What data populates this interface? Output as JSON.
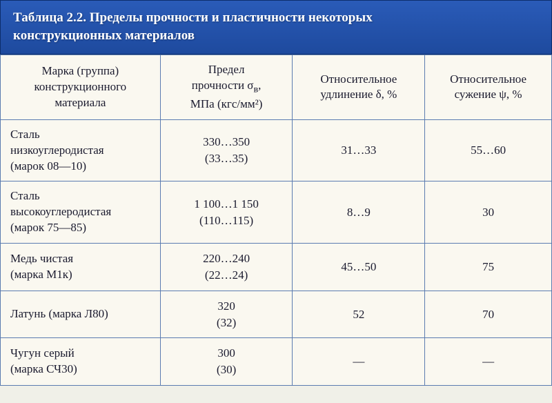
{
  "title_line1": "Таблица 2.2. Пределы прочности и пластичности некоторых",
  "title_line2": "конструкционных материалов",
  "headers": {
    "material": "Марка (группа) конструкционного материала",
    "strength_l1": "Предел",
    "strength_l2": "прочности σ",
    "strength_sub": "в",
    "strength_l2b": ",",
    "strength_l3": "МПа (кгс/мм²)",
    "elongation_l1": "Относительное",
    "elongation_l2": "удлинение δ, %",
    "narrowing_l1": "Относительное",
    "narrowing_l2": "сужение ψ, %"
  },
  "rows": [
    {
      "material_l1": "Сталь",
      "material_l2": "низкоуглеродистая",
      "material_l3": "(марок 08—10)",
      "strength_l1": "330…350",
      "strength_l2": "(33…35)",
      "elongation": "31…33",
      "narrowing": "55…60"
    },
    {
      "material_l1": "Сталь",
      "material_l2": "высокоуглеродистая",
      "material_l3": "(марок 75—85)",
      "strength_l1": "1 100…1 150",
      "strength_l2": "(110…115)",
      "elongation": "8…9",
      "narrowing": "30"
    },
    {
      "material_l1": "Медь чистая",
      "material_l2": "(марка М1к)",
      "material_l3": "",
      "strength_l1": "220…240",
      "strength_l2": "(22…24)",
      "elongation": "45…50",
      "narrowing": "75"
    },
    {
      "material_l1": "Латунь (марка Л80)",
      "material_l2": "",
      "material_l3": "",
      "strength_l1": "320",
      "strength_l2": "(32)",
      "elongation": "52",
      "narrowing": "70"
    },
    {
      "material_l1": "Чугун серый",
      "material_l2": "(марка СЧ30)",
      "material_l3": "",
      "strength_l1": "300",
      "strength_l2": "(30)",
      "elongation": "—",
      "narrowing": "—"
    }
  ],
  "colors": {
    "header_bg": "#1e4a9e",
    "border": "#5a7bb0",
    "page_bg": "#faf8f0",
    "text": "#1a1a2e"
  }
}
